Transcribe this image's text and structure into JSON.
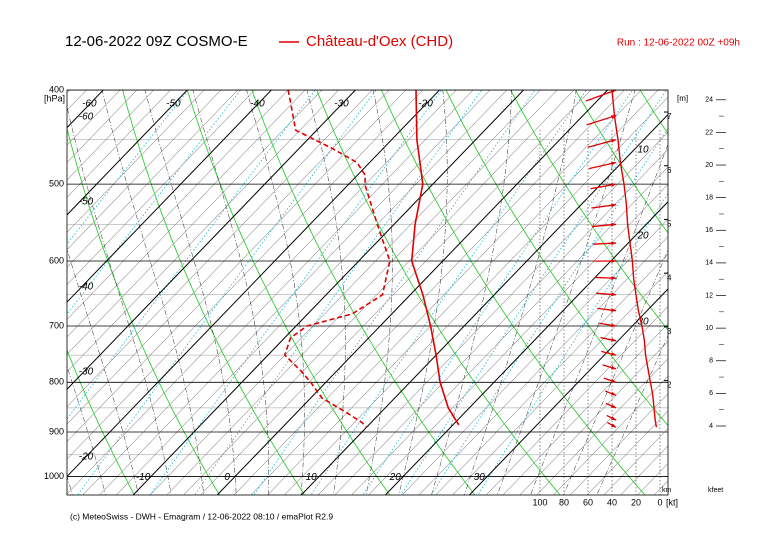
{
  "chart_data": {
    "type": "emagram",
    "title": "12-06-2022 09Z COSMO-E",
    "station": "Château-d'Oex (CHD)",
    "run": "Run : 12-06-2022 00Z +09h",
    "y_label": "[hPa]",
    "footer": "(c) MeteoSwiss - DWH - Emagram / 12-06-2022  08:10 / emaPlot R2.9",
    "log_y": true,
    "ylim": [
      400,
      1045
    ],
    "yticks": [
      400,
      500,
      600,
      700,
      800,
      900,
      1000
    ],
    "xlim": [
      -20,
      51.5
    ],
    "xticks": [
      -10,
      0,
      10,
      20,
      30
    ],
    "top_ticks": [
      -60,
      -50,
      -40,
      -30,
      -20
    ],
    "left_labels": [
      -60,
      -50,
      -40,
      -30,
      -20
    ],
    "right_labels": [
      10,
      20,
      30
    ],
    "series": [
      {
        "style": "solid",
        "color": "#e00000",
        "pressure": [
          400,
          450,
          500,
          550,
          600,
          650,
          700,
          750,
          800,
          850,
          885
        ],
        "values": [
          -22.8,
          -17,
          -11.2,
          -7.5,
          -3.7,
          1.5,
          6,
          10,
          13.6,
          17.5,
          20.7
        ]
      },
      {
        "style": "dashed",
        "color": "#e00000",
        "pressure": [
          400,
          440,
          460,
          475,
          490,
          500,
          550,
          600,
          650,
          680,
          700,
          720,
          750,
          780,
          800,
          830,
          860,
          880,
          890
        ],
        "values": [
          -38,
          -32.5,
          -25.9,
          -21.5,
          -19,
          -18.1,
          -12,
          -6.3,
          -3.3,
          -4.7,
          -8.7,
          -9.3,
          -8,
          -4.1,
          -1.8,
          1.3,
          6,
          8.9,
          10
        ]
      }
    ],
    "wind": {
      "color": "#e00000",
      "xlim": [
        0,
        100
      ],
      "xticks": [
        100,
        80,
        60,
        40,
        20,
        0
      ],
      "unit": "[kt]",
      "pressure": [
        400,
        425,
        450,
        475,
        500,
        525,
        550,
        575,
        600,
        625,
        650,
        675,
        700,
        725,
        750,
        775,
        800,
        825,
        850,
        875,
        890
      ],
      "speed": [
        40,
        38,
        35,
        33,
        30,
        28,
        27,
        25,
        23,
        22,
        20,
        18,
        15,
        13,
        12,
        10,
        8,
        6,
        5,
        4,
        3
      ]
    },
    "height_km": {
      "label": "km",
      "unit_label": "[m]",
      "lim": [
        -0.13,
        7.41
      ],
      "ticks": [
        2,
        3,
        4,
        5,
        6,
        7
      ]
    },
    "height_kfeet": {
      "label": "kfeet",
      "lim": [
        -0.23,
        24.6
      ],
      "ticks": [
        4,
        6,
        8,
        10,
        12,
        14,
        16,
        18,
        20,
        22,
        24
      ]
    }
  }
}
